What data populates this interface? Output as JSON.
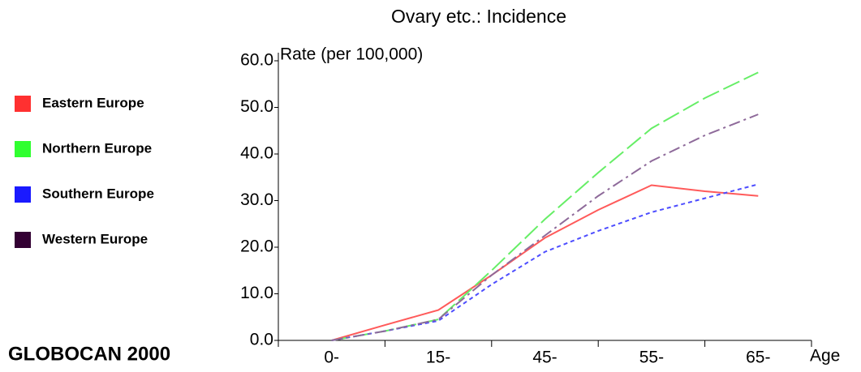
{
  "chart_data": {
    "type": "line",
    "title": "Ovary etc.: Incidence",
    "y_label": "Rate (per 100,000)",
    "x_label": "Age",
    "source": "GLOBOCAN 2000",
    "categories": [
      "0-",
      null,
      "15-",
      null,
      "45-",
      null,
      "55-",
      null,
      "65-"
    ],
    "series": [
      {
        "name": "Eastern Europe",
        "color": "#ff3030",
        "line_color": "#ff5a5a",
        "style": "solid",
        "values": [
          0,
          3.3,
          6.5,
          14,
          22,
          28,
          33.3,
          32,
          31
        ]
      },
      {
        "name": "Northern Europe",
        "color": "#30ff30",
        "line_color": "#66ee66",
        "style": "dashed",
        "values": [
          0,
          2,
          4.5,
          15,
          26,
          36,
          45.5,
          52,
          57.5
        ]
      },
      {
        "name": "Southern Europe",
        "color": "#1a1aff",
        "line_color": "#4d4dff",
        "style": "dotted",
        "values": [
          0,
          2,
          4.2,
          12,
          19,
          23.5,
          27.5,
          30.5,
          33.5
        ]
      },
      {
        "name": "Western Europe",
        "color": "#330033",
        "line_color": "#8e6a9a",
        "style": "dashdot",
        "values": [
          0,
          2,
          4.5,
          14,
          22.5,
          31,
          38.5,
          44,
          48.5
        ]
      }
    ],
    "ylim": [
      0,
      60
    ],
    "yticks": [
      {
        "value": 0,
        "label": "0.0"
      },
      {
        "value": 10,
        "label": "10.0"
      },
      {
        "value": 20,
        "label": "20.0"
      },
      {
        "value": 30,
        "label": "30.0"
      },
      {
        "value": 40,
        "label": "40.0"
      },
      {
        "value": 50,
        "label": "50.0"
      },
      {
        "value": 60,
        "label": "60.0"
      }
    ],
    "grid": false
  }
}
